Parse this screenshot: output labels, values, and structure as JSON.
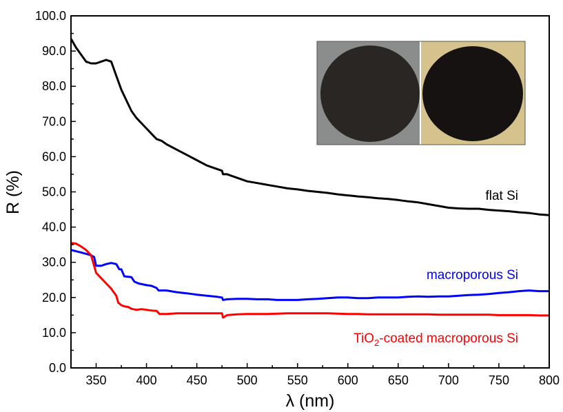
{
  "chart_data": {
    "type": "line",
    "title": "",
    "xlabel": "λ (nm)",
    "ylabel": "R (%)",
    "xlim": [
      325,
      800
    ],
    "ylim": [
      0,
      100
    ],
    "x_ticks": [
      350,
      400,
      450,
      500,
      550,
      600,
      650,
      700,
      750,
      800
    ],
    "x_tick_labels": [
      "350",
      "400",
      "450",
      "500",
      "550",
      "600",
      "650",
      "700",
      "750",
      "800"
    ],
    "y_ticks": [
      0,
      10,
      20,
      30,
      40,
      50,
      60,
      70,
      80,
      90,
      100
    ],
    "y_tick_labels": [
      "0.0",
      "10.0",
      "20.0",
      "30.0",
      "40.0",
      "50.0",
      "60.0",
      "70.0",
      "80.0",
      "90.0",
      "100.0"
    ],
    "grid": false,
    "series": [
      {
        "name": "flat Si",
        "color": "#000000",
        "points": [
          [
            325,
            93.5
          ],
          [
            330,
            91
          ],
          [
            340,
            87
          ],
          [
            345,
            86.5
          ],
          [
            350,
            86.5
          ],
          [
            355,
            87
          ],
          [
            360,
            87.5
          ],
          [
            365,
            87
          ],
          [
            370,
            83
          ],
          [
            375,
            79
          ],
          [
            380,
            76
          ],
          [
            385,
            73
          ],
          [
            390,
            71
          ],
          [
            395,
            69.5
          ],
          [
            400,
            68
          ],
          [
            405,
            66.5
          ],
          [
            410,
            65
          ],
          [
            415,
            64.5
          ],
          [
            420,
            63.5
          ],
          [
            430,
            62
          ],
          [
            440,
            60.5
          ],
          [
            450,
            59
          ],
          [
            460,
            57.5
          ],
          [
            470,
            56.5
          ],
          [
            475,
            56
          ],
          [
            476,
            55
          ],
          [
            480,
            55
          ],
          [
            490,
            54
          ],
          [
            500,
            53
          ],
          [
            510,
            52.5
          ],
          [
            520,
            52
          ],
          [
            530,
            51.5
          ],
          [
            540,
            51
          ],
          [
            550,
            50.7
          ],
          [
            560,
            50.3
          ],
          [
            570,
            50
          ],
          [
            580,
            49.7
          ],
          [
            590,
            49.3
          ],
          [
            600,
            49
          ],
          [
            610,
            48.7
          ],
          [
            620,
            48.5
          ],
          [
            630,
            48.2
          ],
          [
            640,
            48
          ],
          [
            650,
            47.7
          ],
          [
            660,
            47.3
          ],
          [
            670,
            47
          ],
          [
            680,
            46.5
          ],
          [
            690,
            46
          ],
          [
            700,
            45.5
          ],
          [
            710,
            45.3
          ],
          [
            720,
            45.2
          ],
          [
            730,
            45.2
          ],
          [
            740,
            44.9
          ],
          [
            750,
            44.7
          ],
          [
            760,
            44.5
          ],
          [
            770,
            44.2
          ],
          [
            780,
            44
          ],
          [
            790,
            43.6
          ],
          [
            800,
            43.4
          ]
        ]
      },
      {
        "name": "macroporous Si",
        "color": "#0000ff",
        "points": [
          [
            325,
            33.5
          ],
          [
            335,
            32.8
          ],
          [
            345,
            32
          ],
          [
            348,
            31.5
          ],
          [
            350,
            29
          ],
          [
            355,
            29
          ],
          [
            360,
            29.5
          ],
          [
            365,
            29.8
          ],
          [
            370,
            29.5
          ],
          [
            373,
            28
          ],
          [
            375,
            28
          ],
          [
            378,
            26
          ],
          [
            385,
            25.8
          ],
          [
            388,
            24.5
          ],
          [
            392,
            24
          ],
          [
            400,
            23.5
          ],
          [
            405,
            23.3
          ],
          [
            410,
            22.7
          ],
          [
            412,
            22
          ],
          [
            420,
            22
          ],
          [
            430,
            21.5
          ],
          [
            440,
            21.2
          ],
          [
            450,
            20.8
          ],
          [
            460,
            20.5
          ],
          [
            470,
            20.2
          ],
          [
            475,
            20
          ],
          [
            476,
            19.3
          ],
          [
            480,
            19.5
          ],
          [
            490,
            19.6
          ],
          [
            500,
            19.6
          ],
          [
            510,
            19.5
          ],
          [
            520,
            19.5
          ],
          [
            530,
            19.3
          ],
          [
            540,
            19.3
          ],
          [
            550,
            19.3
          ],
          [
            560,
            19.5
          ],
          [
            570,
            19.6
          ],
          [
            580,
            19.8
          ],
          [
            590,
            20
          ],
          [
            600,
            20
          ],
          [
            610,
            19.8
          ],
          [
            620,
            19.8
          ],
          [
            630,
            20
          ],
          [
            640,
            20
          ],
          [
            650,
            20
          ],
          [
            660,
            20.2
          ],
          [
            670,
            20.3
          ],
          [
            680,
            20.2
          ],
          [
            690,
            20.3
          ],
          [
            700,
            20.3
          ],
          [
            710,
            20.5
          ],
          [
            720,
            20.7
          ],
          [
            730,
            20.8
          ],
          [
            740,
            21
          ],
          [
            750,
            21.3
          ],
          [
            760,
            21.5
          ],
          [
            770,
            21.8
          ],
          [
            780,
            22
          ],
          [
            790,
            21.8
          ],
          [
            800,
            21.8
          ]
        ]
      },
      {
        "name": "TiO2-coated macroporous Si",
        "color": "#ff0000",
        "points": [
          [
            325,
            35.5
          ],
          [
            330,
            35.3
          ],
          [
            335,
            34.5
          ],
          [
            340,
            33.5
          ],
          [
            345,
            32
          ],
          [
            348,
            29
          ],
          [
            350,
            27
          ],
          [
            355,
            25.5
          ],
          [
            360,
            24
          ],
          [
            365,
            22.5
          ],
          [
            370,
            20.5
          ],
          [
            372,
            18.5
          ],
          [
            375,
            17.8
          ],
          [
            378,
            17.5
          ],
          [
            382,
            17.3
          ],
          [
            385,
            16.8
          ],
          [
            390,
            16.5
          ],
          [
            395,
            16.7
          ],
          [
            400,
            16.5
          ],
          [
            405,
            16.3
          ],
          [
            410,
            16.2
          ],
          [
            413,
            15.3
          ],
          [
            420,
            15.3
          ],
          [
            430,
            15.5
          ],
          [
            440,
            15.5
          ],
          [
            450,
            15.5
          ],
          [
            460,
            15.5
          ],
          [
            470,
            15.5
          ],
          [
            475,
            15.5
          ],
          [
            476,
            14.3
          ],
          [
            480,
            15
          ],
          [
            490,
            15.2
          ],
          [
            500,
            15.3
          ],
          [
            510,
            15.3
          ],
          [
            520,
            15.3
          ],
          [
            530,
            15.4
          ],
          [
            540,
            15.5
          ],
          [
            550,
            15.5
          ],
          [
            560,
            15.5
          ],
          [
            570,
            15.5
          ],
          [
            580,
            15.5
          ],
          [
            590,
            15.4
          ],
          [
            600,
            15.3
          ],
          [
            610,
            15.3
          ],
          [
            620,
            15.2
          ],
          [
            630,
            15.2
          ],
          [
            640,
            15.2
          ],
          [
            650,
            15.2
          ],
          [
            660,
            15.2
          ],
          [
            670,
            15.2
          ],
          [
            680,
            15.2
          ],
          [
            690,
            15.1
          ],
          [
            700,
            15.1
          ],
          [
            710,
            15.1
          ],
          [
            720,
            15.1
          ],
          [
            730,
            15.1
          ],
          [
            740,
            15.1
          ],
          [
            750,
            15
          ],
          [
            760,
            15
          ],
          [
            770,
            15
          ],
          [
            780,
            15
          ],
          [
            790,
            14.9
          ],
          [
            800,
            14.9
          ]
        ]
      }
    ],
    "annotations": [
      {
        "text": "flat Si",
        "color": "#000000",
        "anchor_x": 752,
        "anchor_y": 49
      },
      {
        "text": "macroporous Si",
        "color": "#0000ff",
        "anchor_x": 752,
        "anchor_y": 26.5
      },
      {
        "text_main": "TiO",
        "text_sub": "2",
        "text_rest": "-coated macroporous Si",
        "color": "#ff0000",
        "anchor_x": 752,
        "anchor_y": 6.7
      }
    ],
    "inset_photos": [
      {
        "description": "macroporous Si wafer",
        "background": "#8a8d8b",
        "disc_color": "#2a2623"
      },
      {
        "description": "TiO2-coated macroporous Si wafer",
        "background": "#d6c28c",
        "disc_color": "#151211"
      }
    ]
  }
}
